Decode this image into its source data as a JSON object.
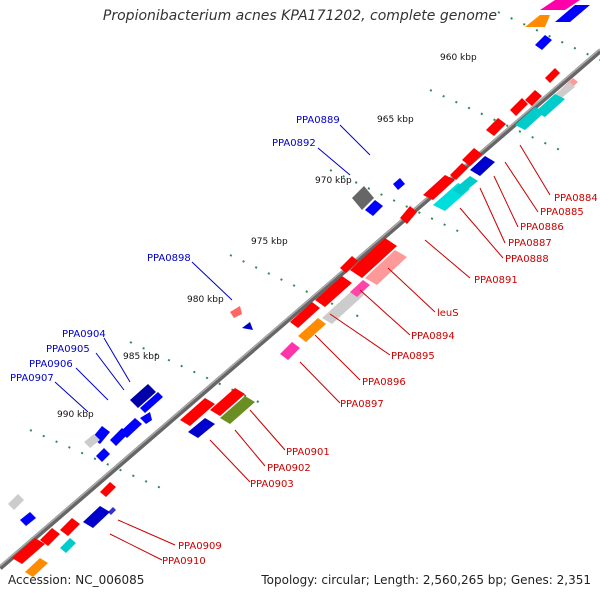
{
  "title": "Propionibacterium acnes KPA171202, complete genome",
  "accession_label": "Accession: NC_006085",
  "summary": "Topology: circular; Length: 2,560,265 bp; Genes: 2,351",
  "colors": {
    "backbone": "#808080",
    "tick": "#2e8b57",
    "label_blue": "#0000cc",
    "label_red": "#cc0000"
  },
  "ticks": [
    "960 kbp",
    "965 kbp",
    "970 kbp",
    "975 kbp",
    "980 kbp",
    "985 kbp",
    "990 kbp"
  ],
  "labels_blue": [
    "PPA0889",
    "PPA0892",
    "PPA0898",
    "PPA0904",
    "PPA0905",
    "PPA0906",
    "PPA0907"
  ],
  "labels_red": [
    "PPA0884",
    "PPA0885",
    "PPA0886",
    "PPA0887",
    "PPA0888",
    "PPA0891",
    "leuS",
    "PPA0894",
    "PPA0895",
    "PPA0896",
    "PPA0897",
    "PPA0901",
    "PPA0902",
    "PPA0903",
    "PPA0909",
    "PPA0910"
  ],
  "feature_colors": [
    "red",
    "blue",
    "cyan",
    "gray",
    "orange",
    "magenta",
    "olive",
    "pink",
    "dark-gray",
    "navy"
  ]
}
